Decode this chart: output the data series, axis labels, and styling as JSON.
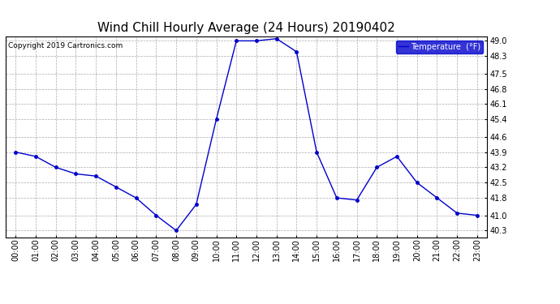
{
  "title": "Wind Chill Hourly Average (24 Hours) 20190402",
  "copyright_text": "Copyright 2019 Cartronics.com",
  "legend_label": "Temperature  (°F)",
  "hours": [
    0,
    1,
    2,
    3,
    4,
    5,
    6,
    7,
    8,
    9,
    10,
    11,
    12,
    13,
    14,
    15,
    16,
    17,
    18,
    19,
    20,
    21,
    22,
    23
  ],
  "values": [
    43.9,
    43.7,
    43.2,
    42.9,
    42.8,
    42.3,
    41.8,
    41.0,
    40.3,
    41.5,
    45.4,
    49.0,
    49.0,
    49.1,
    48.5,
    43.9,
    41.8,
    41.7,
    43.2,
    43.7,
    42.5,
    41.8,
    41.1,
    41.0
  ],
  "ylim_min": 40.3,
  "ylim_max": 49.0,
  "yticks": [
    40.3,
    41.0,
    41.8,
    42.5,
    43.2,
    43.9,
    44.6,
    45.4,
    46.1,
    46.8,
    47.5,
    48.3,
    49.0
  ],
  "line_color": "#0000cc",
  "marker_color": "#0000cc",
  "bg_color": "#ffffff",
  "plot_bg_color": "#ffffff",
  "grid_color": "#aaaaaa",
  "title_fontsize": 11,
  "legend_bg_color": "#0000cc",
  "legend_text_color": "#ffffff"
}
